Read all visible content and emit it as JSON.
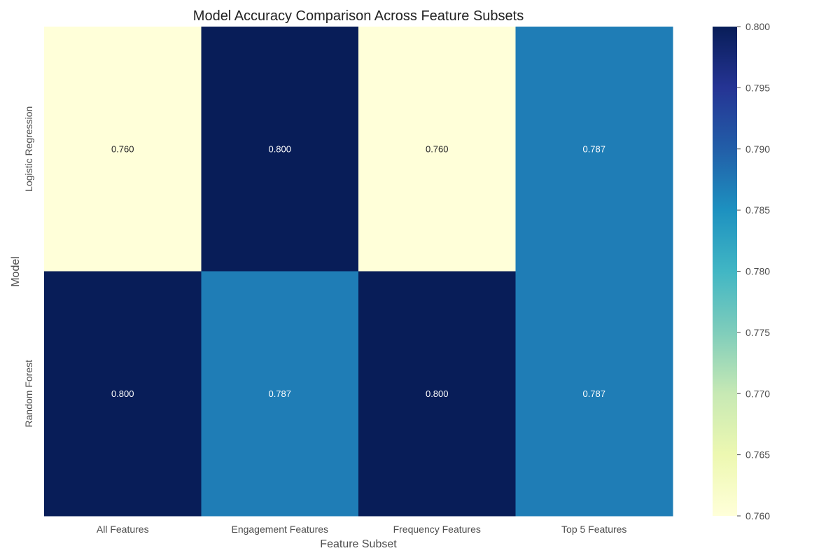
{
  "chart_data": {
    "type": "heatmap",
    "title": "Model Accuracy Comparison Across Feature Subsets",
    "xlabel": "Feature Subset",
    "ylabel": "Model",
    "x_categories": [
      "All Features",
      "Engagement Features",
      "Frequency Features",
      "Top 5 Features"
    ],
    "y_categories": [
      "Logistic Regression",
      "Random Forest"
    ],
    "values": [
      [
        0.76,
        0.8,
        0.76,
        0.787
      ],
      [
        0.8,
        0.787,
        0.8,
        0.787
      ]
    ],
    "value_labels": [
      [
        "0.760",
        "0.800",
        "0.760",
        "0.787"
      ],
      [
        "0.800",
        "0.787",
        "0.800",
        "0.787"
      ]
    ],
    "colorbar": {
      "min": 0.76,
      "max": 0.8,
      "ticks": [
        0.76,
        0.765,
        0.77,
        0.775,
        0.78,
        0.785,
        0.79,
        0.795,
        0.8
      ],
      "tick_labels": [
        "0.760",
        "0.765",
        "0.770",
        "0.775",
        "0.780",
        "0.785",
        "0.790",
        "0.795",
        "0.800"
      ],
      "colormap": "YlGnBu",
      "colors": [
        "#ffffd9",
        "#edf8b1",
        "#c7e9b4",
        "#7fcdbb",
        "#41b6c4",
        "#1d91c0",
        "#225ea8",
        "#253494",
        "#081d58"
      ]
    },
    "grid": false
  }
}
